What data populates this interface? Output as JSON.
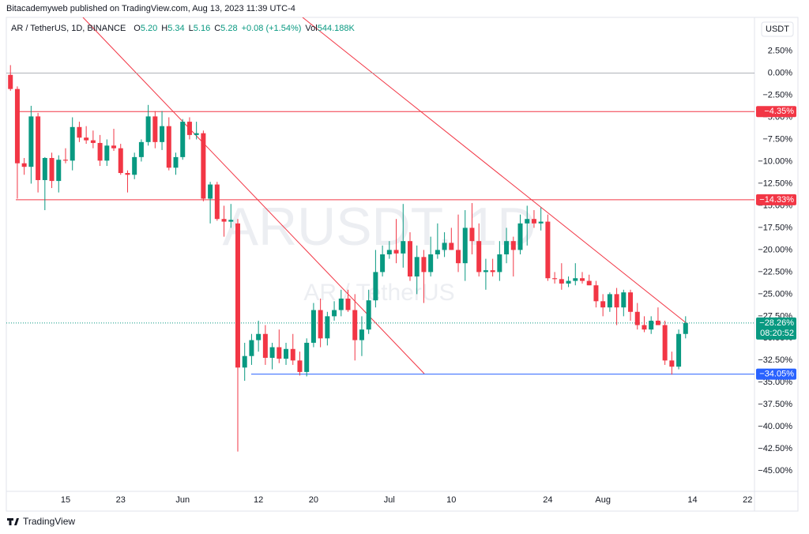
{
  "chart_data": {
    "type": "candlestick",
    "publisher": "Bitacademyweb published on TradingView.com, Aug 13, 2023 11:39 UTC-4",
    "legend": {
      "symbol": "AR / TetherUS, 1D, BINANCE",
      "ohlc": [
        {
          "label": "O",
          "value": "5.20"
        },
        {
          "label": "H",
          "value": "5.34"
        },
        {
          "label": "L",
          "value": "5.16"
        },
        {
          "label": "C",
          "value": "5.28"
        }
      ],
      "change": "+0.08 (+1.54%)",
      "volume_label": "Vol",
      "volume": "544.188K"
    },
    "currency_button": "USDT",
    "watermark": "ARUSDT, 1D",
    "watermark_sub": "AR / TetherUS",
    "footer": "TradingView",
    "up_color": "#089981",
    "down_color": "#f23645",
    "x": [
      "2023-05-07",
      "2023-05-08",
      "2023-05-09",
      "2023-05-10",
      "2023-05-11",
      "2023-05-12",
      "2023-05-13",
      "2023-05-14",
      "2023-05-15",
      "2023-05-16",
      "2023-05-17",
      "2023-05-18",
      "2023-05-19",
      "2023-05-20",
      "2023-05-21",
      "2023-05-22",
      "2023-05-23",
      "2023-05-24",
      "2023-05-25",
      "2023-05-26",
      "2023-05-27",
      "2023-05-28",
      "2023-05-29",
      "2023-05-30",
      "2023-05-31",
      "2023-06-01",
      "2023-06-02",
      "2023-06-03",
      "2023-06-04",
      "2023-06-05",
      "2023-06-06",
      "2023-06-07",
      "2023-06-08",
      "2023-06-09",
      "2023-06-10",
      "2023-06-11",
      "2023-06-12",
      "2023-06-13",
      "2023-06-14",
      "2023-06-15",
      "2023-06-16",
      "2023-06-17",
      "2023-06-18",
      "2023-06-19",
      "2023-06-20",
      "2023-06-21",
      "2023-06-22",
      "2023-06-23",
      "2023-06-24",
      "2023-06-25",
      "2023-06-26",
      "2023-06-27",
      "2023-06-28",
      "2023-06-29",
      "2023-06-30",
      "2023-07-01",
      "2023-07-02",
      "2023-07-03",
      "2023-07-04",
      "2023-07-05",
      "2023-07-06",
      "2023-07-07",
      "2023-07-08",
      "2023-07-09",
      "2023-07-10",
      "2023-07-11",
      "2023-07-12",
      "2023-07-13",
      "2023-07-14",
      "2023-07-15",
      "2023-07-16",
      "2023-07-17",
      "2023-07-18",
      "2023-07-19",
      "2023-07-20",
      "2023-07-21",
      "2023-07-22",
      "2023-07-23",
      "2023-07-24",
      "2023-07-25",
      "2023-07-26",
      "2023-07-27",
      "2023-07-28",
      "2023-07-29",
      "2023-07-30",
      "2023-07-31",
      "2023-08-01",
      "2023-08-02",
      "2023-08-03",
      "2023-08-04",
      "2023-08-05",
      "2023-08-06",
      "2023-08-07",
      "2023-08-08",
      "2023-08-09",
      "2023-08-10",
      "2023-08-11",
      "2023-08-12",
      "2023-08-13"
    ],
    "open": [
      -0.2,
      -1.8,
      -10.2,
      -10.6,
      -4.9,
      -12.1,
      -9.6,
      -12.2,
      -9.8,
      -9.9,
      -6.1,
      -7.3,
      -7.6,
      -7.9,
      -9.9,
      -8.2,
      -8.5,
      -11.3,
      -11.5,
      -9.5,
      -7.8,
      -4.9,
      -7.8,
      -6.0,
      -10.7,
      -9.5,
      -5.5,
      -7.0,
      -6.8,
      -14.2,
      -12.6,
      -16.5,
      -16.8,
      -17.0,
      -33.3,
      -32.0,
      -30.2,
      -29.5,
      -32.2,
      -31.0,
      -32.3,
      -31.2,
      -32.5,
      -33.8,
      -30.5,
      -26.8,
      -30.0,
      -27.5,
      -26.8,
      -25.5,
      -26.8,
      -30.2,
      -29.0,
      -25.7,
      -22.5,
      -20.5,
      -20.0,
      -20.4,
      -19.0,
      -23.0,
      -20.8,
      -22.5,
      -20.5,
      -20.0,
      -19.2,
      -20.0,
      -21.5,
      -17.5,
      -19.0,
      -22.5,
      -22.3,
      -22.5,
      -20.5,
      -19.0,
      -20.0,
      -17.0,
      -16.5,
      -17.0,
      -16.8,
      -23.2,
      -23.3,
      -23.8,
      -23.5,
      -23.2,
      -23.5,
      -24.0,
      -25.8,
      -26.5,
      -25.0,
      -26.5,
      -24.8,
      -27.0,
      -28.5,
      -29.0,
      -28.0,
      -28.5,
      -32.5,
      -33.2,
      -29.5
    ],
    "high": [
      0.9,
      -1.5,
      -9.6,
      -3.7,
      -4.5,
      -9.5,
      -9.0,
      -9.3,
      -8.5,
      -5.0,
      -5.5,
      -6.0,
      -6.5,
      -7.0,
      -7.5,
      -6.3,
      -8.0,
      -11.0,
      -9.0,
      -7.5,
      -3.6,
      -4.3,
      -4.3,
      -5.0,
      -9.0,
      -5.2,
      -5.0,
      -5.5,
      -6.5,
      -12.3,
      -12.3,
      -15.0,
      -14.8,
      -16.5,
      -30.5,
      -29.5,
      -28.0,
      -28.5,
      -30.5,
      -29.0,
      -30.5,
      -29.5,
      -31.5,
      -30.0,
      -26.0,
      -25.5,
      -27.0,
      -25.8,
      -24.5,
      -24.5,
      -25.0,
      -27.5,
      -24.5,
      -20.0,
      -19.5,
      -19.0,
      -16.5,
      -14.8,
      -18.0,
      -19.5,
      -20.0,
      -18.5,
      -17.0,
      -18.0,
      -17.5,
      -16.0,
      -15.5,
      -14.7,
      -17.0,
      -21.0,
      -21.0,
      -19.0,
      -17.5,
      -18.5,
      -16.0,
      -15.0,
      -15.5,
      -15.2,
      -16.0,
      -22.5,
      -21.5,
      -23.0,
      -21.5,
      -22.5,
      -22.8,
      -23.5,
      -25.0,
      -24.8,
      -24.3,
      -24.5,
      -24.5,
      -26.0,
      -27.5,
      -27.5,
      -26.5,
      -28.0,
      -31.5,
      -29.0,
      -27.5
    ],
    "low": [
      -2.0,
      -14.2,
      -11.5,
      -12.5,
      -13.5,
      -15.5,
      -13.0,
      -13.5,
      -10.2,
      -11.0,
      -7.8,
      -8.0,
      -8.5,
      -10.5,
      -10.5,
      -8.8,
      -11.5,
      -13.5,
      -12.0,
      -10.0,
      -8.2,
      -8.5,
      -8.7,
      -11.0,
      -11.5,
      -9.8,
      -7.5,
      -7.5,
      -14.5,
      -17.0,
      -16.7,
      -18.5,
      -17.5,
      -42.8,
      -34.8,
      -33.0,
      -31.5,
      -33.0,
      -33.5,
      -32.8,
      -33.0,
      -33.0,
      -34.2,
      -34.3,
      -31.0,
      -31.0,
      -30.8,
      -28.0,
      -27.5,
      -27.0,
      -32.5,
      -32.0,
      -29.5,
      -26.5,
      -23.0,
      -21.0,
      -21.5,
      -22.0,
      -23.5,
      -25.0,
      -26.0,
      -23.0,
      -21.0,
      -20.8,
      -20.0,
      -22.5,
      -23.5,
      -20.5,
      -23.0,
      -24.5,
      -23.0,
      -23.5,
      -21.5,
      -23.0,
      -20.5,
      -19.5,
      -17.5,
      -17.8,
      -23.5,
      -23.8,
      -24.5,
      -24.2,
      -24.0,
      -23.8,
      -24.0,
      -26.5,
      -27.5,
      -27.0,
      -28.5,
      -27.5,
      -28.0,
      -29.0,
      -29.3,
      -29.5,
      -28.5,
      -33.0,
      -34.1,
      -33.5,
      -30.0
    ],
    "close": [
      -1.8,
      -10.2,
      -10.6,
      -4.9,
      -12.1,
      -9.6,
      -12.2,
      -9.8,
      -9.9,
      -6.1,
      -7.3,
      -7.6,
      -7.9,
      -9.9,
      -8.2,
      -8.5,
      -11.3,
      -11.5,
      -9.5,
      -7.8,
      -4.9,
      -7.8,
      -6.0,
      -10.7,
      -9.5,
      -5.5,
      -7.0,
      -6.8,
      -14.2,
      -12.6,
      -16.5,
      -16.8,
      -16.6,
      -33.3,
      -32.0,
      -30.2,
      -29.5,
      -32.2,
      -31.0,
      -32.3,
      -31.2,
      -32.5,
      -33.8,
      -30.5,
      -26.8,
      -30.0,
      -27.5,
      -26.8,
      -25.5,
      -26.8,
      -30.2,
      -29.0,
      -25.7,
      -22.5,
      -20.5,
      -20.0,
      -20.4,
      -19.0,
      -23.0,
      -20.8,
      -22.5,
      -20.5,
      -20.0,
      -19.2,
      -20.0,
      -21.5,
      -17.5,
      -19.0,
      -22.5,
      -22.3,
      -22.5,
      -20.5,
      -19.0,
      -20.0,
      -17.0,
      -16.5,
      -17.0,
      -16.8,
      -23.2,
      -23.3,
      -23.8,
      -23.5,
      -23.2,
      -23.5,
      -24.0,
      -25.8,
      -26.5,
      -25.0,
      -26.5,
      -24.8,
      -27.0,
      -28.5,
      -29.0,
      -28.0,
      -28.5,
      -32.5,
      -33.2,
      -29.5,
      -28.26
    ],
    "xlim": [
      "2023-05-06",
      "2023-08-23"
    ],
    "xticks": [
      {
        "value": "2023-05-15",
        "label": "15"
      },
      {
        "value": "2023-05-23",
        "label": "23"
      },
      {
        "value": "2023-06-01",
        "label": "Jun"
      },
      {
        "value": "2023-06-12",
        "label": "12"
      },
      {
        "value": "2023-06-20",
        "label": "20"
      },
      {
        "value": "2023-07-01",
        "label": "Jul"
      },
      {
        "value": "2023-07-10",
        "label": "10"
      },
      {
        "value": "2023-07-24",
        "label": "24"
      },
      {
        "value": "2023-08-01",
        "label": "Aug"
      },
      {
        "value": "2023-08-14",
        "label": "14"
      },
      {
        "value": "2023-08-22",
        "label": "22"
      }
    ],
    "ylim": [
      -47.3,
      6.3
    ],
    "yticks": [
      {
        "value": 2.5,
        "label": "2.50%"
      },
      {
        "value": 0,
        "label": "0.00%"
      },
      {
        "value": -2.5,
        "label": "−2.50%"
      },
      {
        "value": -5,
        "label": "−5.00%"
      },
      {
        "value": -7.5,
        "label": "−7.50%"
      },
      {
        "value": -10,
        "label": "−10.00%"
      },
      {
        "value": -12.5,
        "label": "−12.50%"
      },
      {
        "value": -15,
        "label": "−15.00%"
      },
      {
        "value": -17.5,
        "label": "−17.50%"
      },
      {
        "value": -20,
        "label": "−20.00%"
      },
      {
        "value": -22.5,
        "label": "−22.50%"
      },
      {
        "value": -25,
        "label": "−25.00%"
      },
      {
        "value": -27.5,
        "label": "−27.50%"
      },
      {
        "value": -30,
        "label": "−30.00%"
      },
      {
        "value": -32.5,
        "label": "−32.50%"
      },
      {
        "value": -35,
        "label": "−35.00%"
      },
      {
        "value": -37.5,
        "label": "−37.50%"
      },
      {
        "value": -40,
        "label": "−40.00%"
      },
      {
        "value": -42.5,
        "label": "−42.50%"
      },
      {
        "value": -45,
        "label": "−45.00%"
      }
    ],
    "grid": false,
    "levels": [
      {
        "value": -4.35,
        "label": "−4.35%",
        "color": "#f23645"
      },
      {
        "value": -14.33,
        "label": "−14.33%",
        "color": "#f23645"
      },
      {
        "value": -34.05,
        "label": "−34.05%",
        "color": "#2962ff"
      }
    ],
    "last_price": {
      "value": -28.26,
      "label": "−28.26%",
      "countdown": "08:20:52",
      "color": "#089981"
    }
  }
}
